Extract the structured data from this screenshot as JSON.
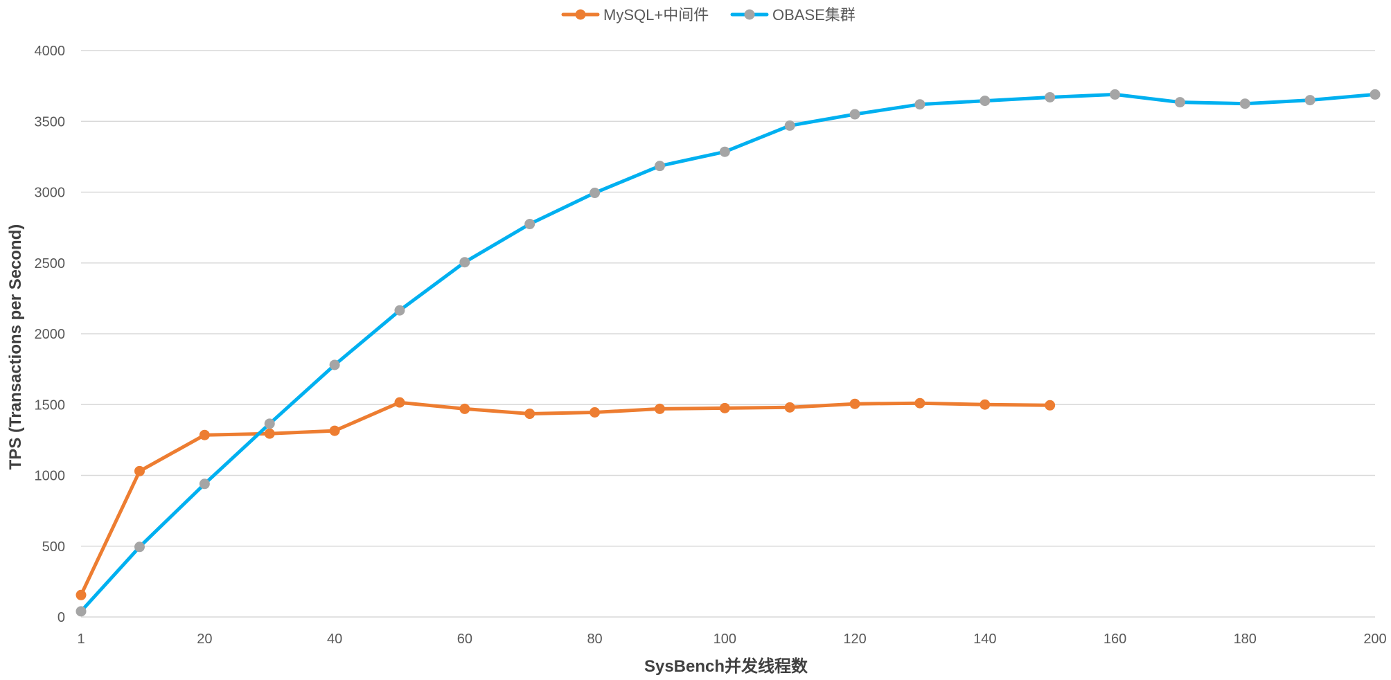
{
  "chart_data": {
    "type": "line",
    "title": "",
    "xlabel": "SysBench并发线程数",
    "ylabel": "TPS (Transactions per Second)",
    "xlim": [
      1,
      200
    ],
    "ylim": [
      0,
      4000
    ],
    "x_ticks": [
      1,
      20,
      40,
      60,
      80,
      100,
      120,
      140,
      160,
      180,
      200
    ],
    "y_ticks": [
      0,
      500,
      1000,
      1500,
      2000,
      2500,
      3000,
      3500,
      4000
    ],
    "grid": "horizontal",
    "legend_position": "top-center",
    "series": [
      {
        "name": "MySQL+中间件",
        "color": "#ED7D31",
        "marker_color": "#ED7D31",
        "x": [
          1,
          10,
          20,
          30,
          40,
          50,
          60,
          70,
          80,
          90,
          100,
          110,
          120,
          130,
          140,
          150
        ],
        "values": [
          155,
          1030,
          1285,
          1295,
          1315,
          1515,
          1470,
          1435,
          1445,
          1470,
          1475,
          1480,
          1505,
          1510,
          1500,
          1495
        ]
      },
      {
        "name": "OBASE集群",
        "color": "#00B0F0",
        "marker_color": "#A5A5A5",
        "x": [
          1,
          10,
          20,
          30,
          40,
          50,
          60,
          70,
          80,
          90,
          100,
          110,
          120,
          130,
          140,
          150,
          160,
          170,
          180,
          190,
          200
        ],
        "values": [
          40,
          495,
          940,
          1365,
          1780,
          2165,
          2505,
          2775,
          2995,
          3185,
          3285,
          3470,
          3550,
          3620,
          3645,
          3670,
          3690,
          3635,
          3625,
          3650,
          3690
        ]
      }
    ]
  }
}
